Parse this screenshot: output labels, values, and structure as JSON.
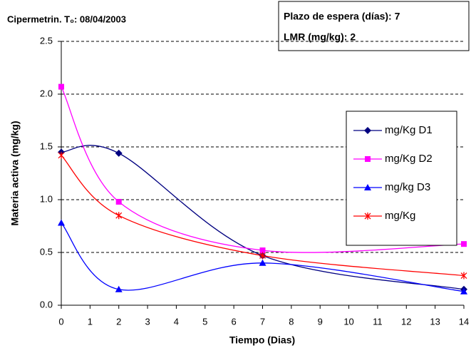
{
  "chart_data": {
    "type": "line",
    "title": "Cipermetrin. T₀: 08/04/2003",
    "annotations": [
      "Plazo de espera (días): 7",
      "LMR (mg/kg): 2"
    ],
    "x_label": "Tiempo (Dias)",
    "y_label": "Materia activa (mg/kg)",
    "x": [
      0,
      2,
      7,
      14
    ],
    "series": [
      {
        "name": "mg/Kg D1",
        "color": "#000080",
        "marker": "diamond",
        "values": [
          1.45,
          1.44,
          0.47,
          0.15
        ]
      },
      {
        "name": "mg/Kg D2",
        "color": "#ff00ff",
        "marker": "square",
        "values": [
          2.07,
          0.98,
          0.52,
          0.58
        ]
      },
      {
        "name": "mg/kg D3",
        "color": "#0000ff",
        "marker": "triangle",
        "values": [
          0.78,
          0.15,
          0.4,
          0.13
        ]
      },
      {
        "name": "mg/Kg",
        "color": "#ff0000",
        "marker": "star",
        "values": [
          1.42,
          0.85,
          0.47,
          0.28
        ]
      }
    ],
    "xlim": [
      0,
      14
    ],
    "xticks": [
      0,
      1,
      2,
      3,
      4,
      5,
      6,
      7,
      8,
      9,
      10,
      11,
      12,
      13,
      14
    ],
    "ylim": [
      0,
      2.5
    ],
    "yticks": [
      {
        "value": 0,
        "label": "0.0"
      },
      0.5,
      {
        "value": 1,
        "label": "1.0"
      },
      1.5,
      {
        "value": 2,
        "label": "2.0"
      },
      2.5
    ],
    "grid": true,
    "smooth": true,
    "legend": "right"
  }
}
